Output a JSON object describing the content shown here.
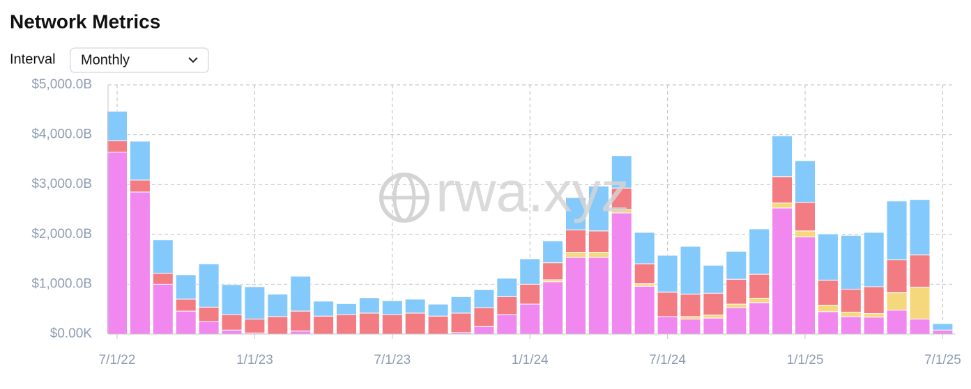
{
  "header": {
    "title": "Network Metrics",
    "interval_label": "Interval",
    "interval_value": "Monthly"
  },
  "chart_data": {
    "type": "stacked_bar",
    "watermark": "rwa.xyz",
    "categories": [
      "7/1/22",
      null,
      null,
      null,
      null,
      null,
      "1/1/23",
      null,
      null,
      null,
      null,
      null,
      "7/1/23",
      null,
      null,
      null,
      null,
      null,
      "1/1/24",
      null,
      null,
      null,
      null,
      null,
      "7/1/24",
      null,
      null,
      null,
      null,
      null,
      "1/1/25",
      null,
      null,
      null,
      null,
      null,
      "7/1/25"
    ],
    "series": [
      {
        "color": "#f088f0",
        "values": [
          3650,
          2850,
          1000,
          460,
          250,
          80,
          20,
          0,
          60,
          0,
          0,
          0,
          0,
          0,
          0,
          30,
          150,
          390,
          600,
          1050,
          1540,
          1540,
          2430,
          960,
          350,
          300,
          320,
          530,
          630,
          2530,
          1950,
          450,
          350,
          340,
          480,
          300,
          80
        ]
      },
      {
        "color": "#f5d77c",
        "values": [
          0,
          0,
          0,
          0,
          0,
          0,
          0,
          0,
          0,
          0,
          0,
          0,
          0,
          0,
          0,
          0,
          0,
          0,
          0,
          40,
          100,
          100,
          70,
          50,
          0,
          50,
          60,
          70,
          90,
          100,
          120,
          130,
          90,
          70,
          350,
          640,
          0
        ]
      },
      {
        "color": "#f27c82",
        "values": [
          230,
          240,
          220,
          240,
          290,
          310,
          280,
          350,
          400,
          360,
          390,
          420,
          390,
          420,
          360,
          390,
          380,
          360,
          400,
          340,
          450,
          430,
          430,
          400,
          490,
          450,
          440,
          500,
          480,
          530,
          570,
          500,
          460,
          540,
          660,
          650,
          0
        ]
      },
      {
        "color": "#84c9fb",
        "values": [
          590,
          780,
          670,
          490,
          870,
          600,
          650,
          450,
          700,
          300,
          220,
          310,
          280,
          280,
          240,
          330,
          360,
          370,
          510,
          440,
          650,
          900,
          650,
          630,
          740,
          960,
          560,
          560,
          910,
          820,
          840,
          930,
          1080,
          1090,
          1180,
          1110,
          130
        ]
      }
    ],
    "ylim": [
      0,
      5000
    ],
    "yticks": [
      {
        "value": 0,
        "label": "$0.00K"
      },
      {
        "value": 1000,
        "label": "$1,000.0B"
      },
      {
        "value": 2000,
        "label": "$2,000.0B"
      },
      {
        "value": 3000,
        "label": "$3,000.0B"
      },
      {
        "value": 4000,
        "label": "$4,000.0B"
      },
      {
        "value": 5000,
        "label": "$5,000.0B"
      }
    ],
    "grid": true
  }
}
